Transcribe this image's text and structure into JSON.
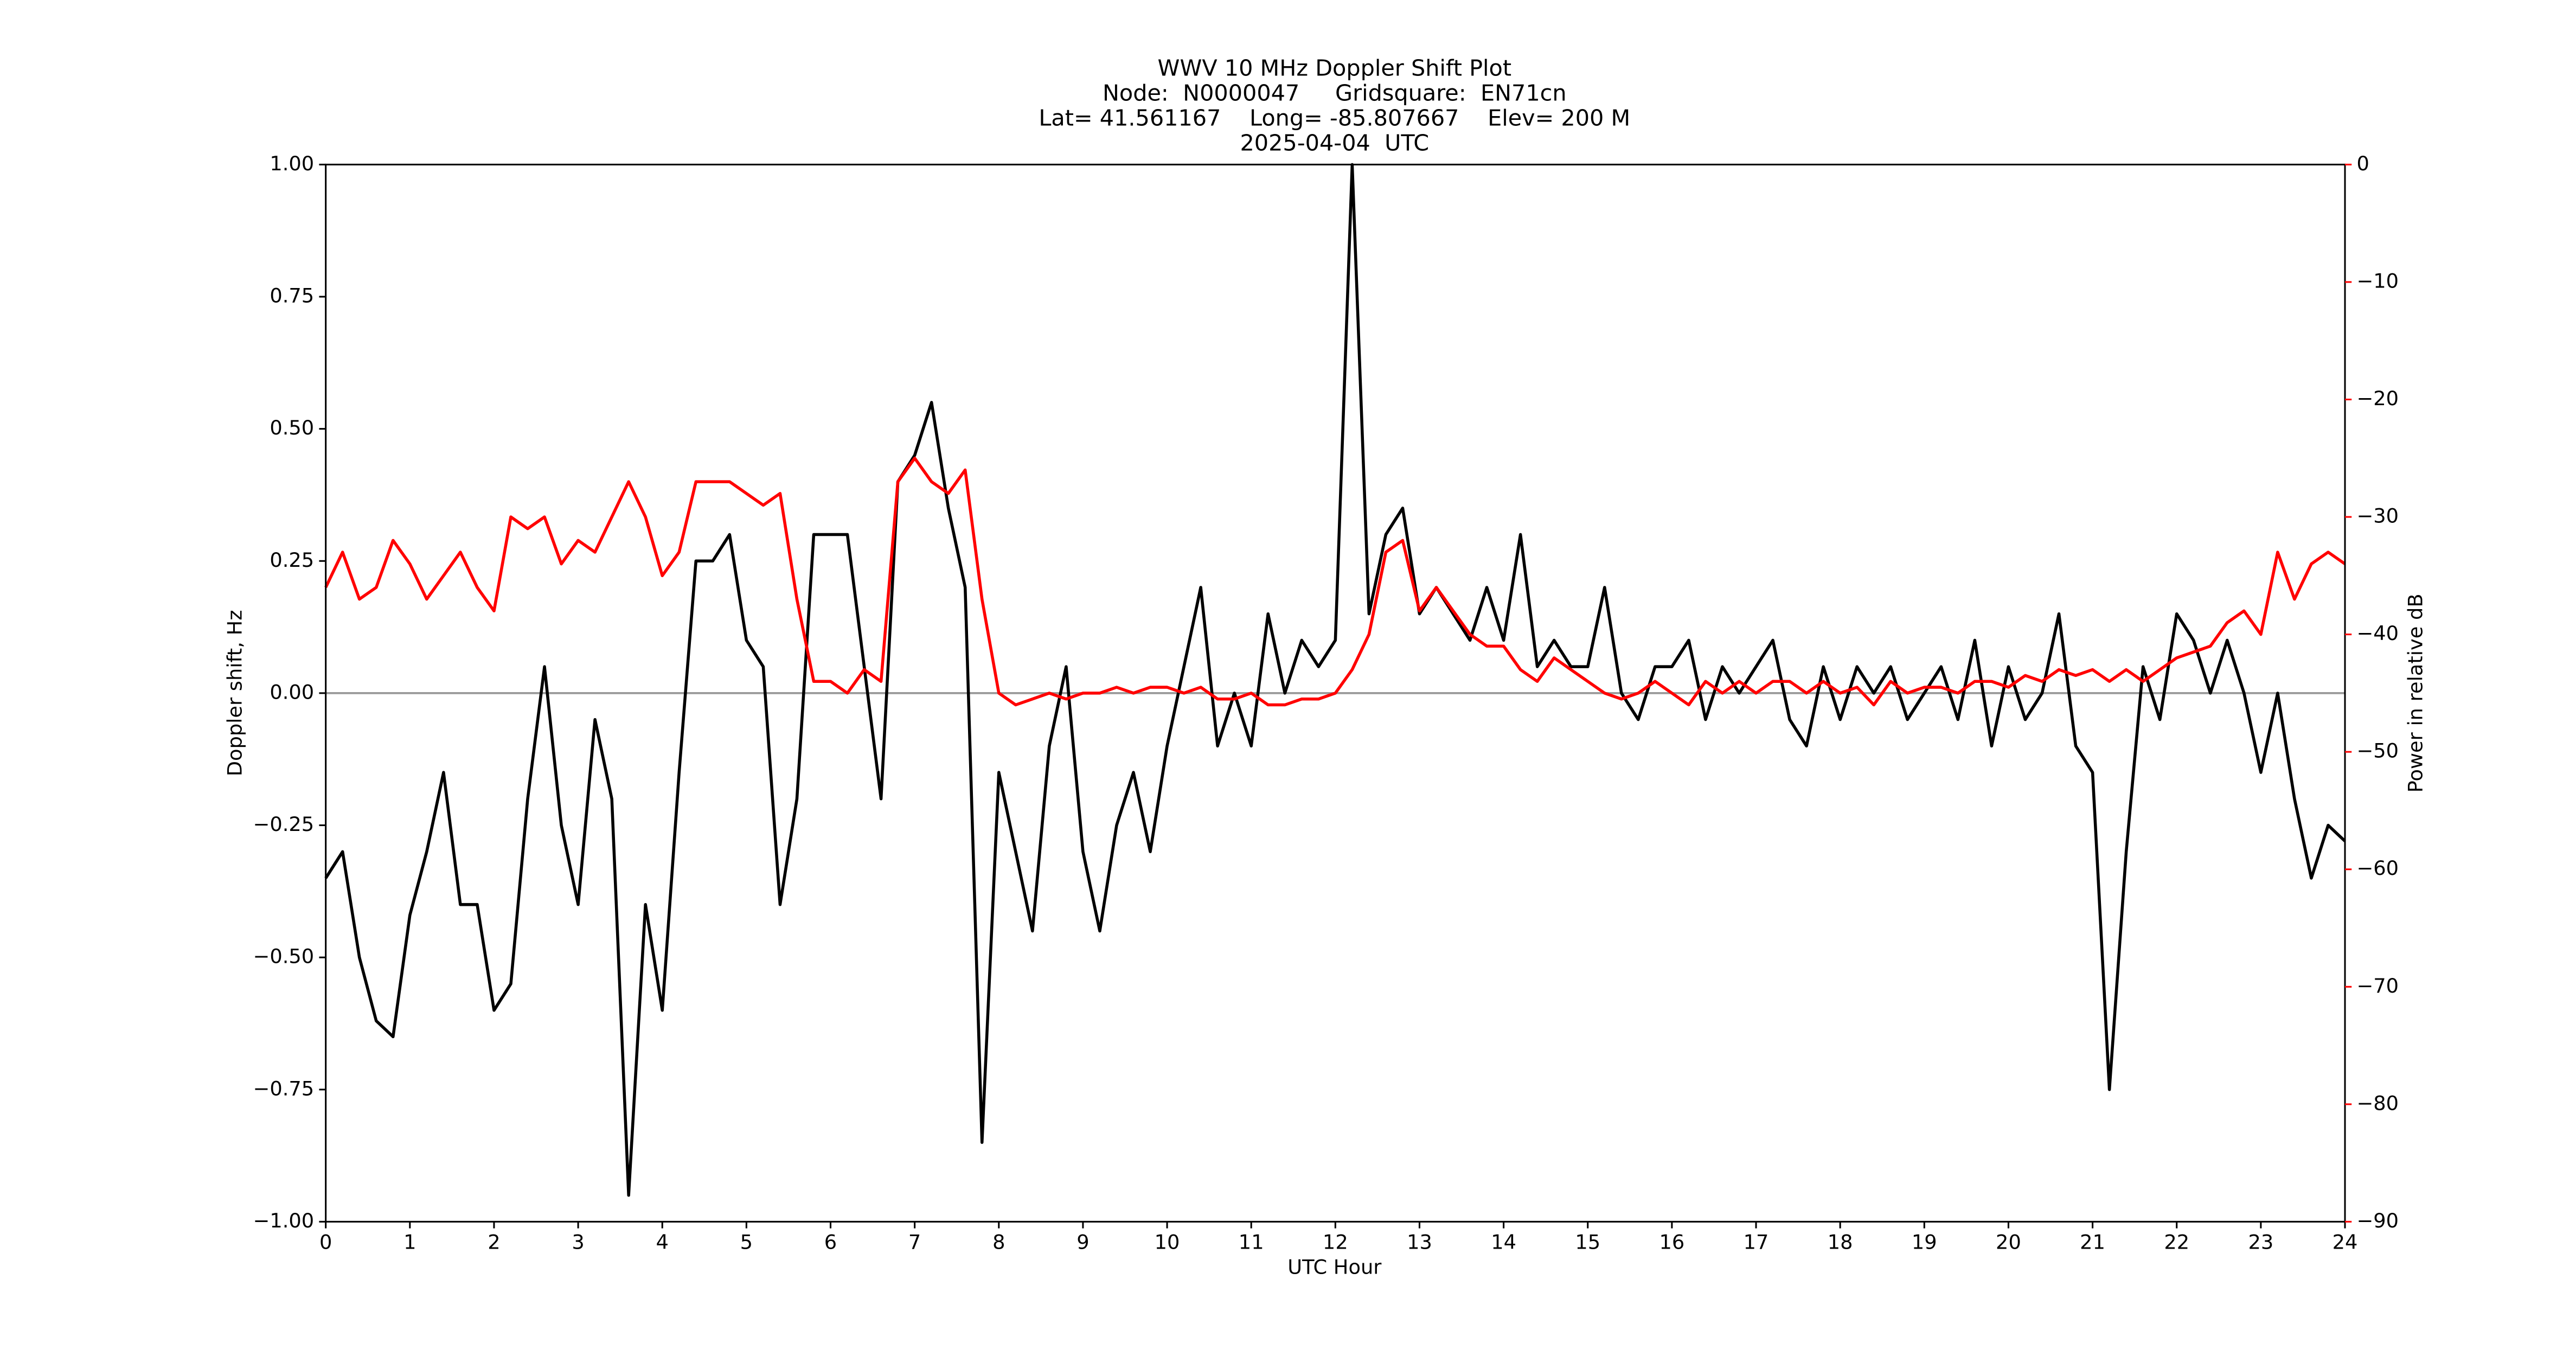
{
  "chart_data": {
    "type": "line",
    "title": "WWV 10 MHz Doppler Shift Plot",
    "subtitle": [
      "Node:  N0000047     Gridsquare:  EN71cn",
      "Lat= 41.561167    Long= -85.807667    Elev= 200 M",
      "2025-04-04  UTC"
    ],
    "x_label": "UTC Hour",
    "y_label": "Doppler shift, Hz",
    "y2_label": "Power in relative dB",
    "y2_color": "#ff0000",
    "x": [
      0,
      0.2,
      0.4,
      0.6,
      0.8,
      1,
      1.2,
      1.4,
      1.6,
      1.8,
      2,
      2.2,
      2.4,
      2.6,
      2.8,
      3,
      3.2,
      3.4,
      3.6,
      3.8,
      4,
      4.2,
      4.4,
      4.6,
      4.8,
      5,
      5.2,
      5.4,
      5.6,
      5.8,
      6,
      6.2,
      6.4,
      6.6,
      6.8,
      7,
      7.2,
      7.4,
      7.6,
      7.8,
      8,
      8.2,
      8.4,
      8.6,
      8.8,
      9,
      9.2,
      9.4,
      9.6,
      9.8,
      10,
      10.2,
      10.4,
      10.6,
      10.8,
      11,
      11.2,
      11.4,
      11.6,
      11.8,
      12,
      12.2,
      12.4,
      12.6,
      12.8,
      13,
      13.2,
      13.4,
      13.6,
      13.8,
      14,
      14.2,
      14.4,
      14.6,
      14.8,
      15,
      15.2,
      15.4,
      15.6,
      15.8,
      16,
      16.2,
      16.4,
      16.6,
      16.8,
      17,
      17.2,
      17.4,
      17.6,
      17.8,
      18,
      18.2,
      18.4,
      18.6,
      18.8,
      19,
      19.2,
      19.4,
      19.6,
      19.8,
      20,
      20.2,
      20.4,
      20.6,
      20.8,
      21,
      21.2,
      21.4,
      21.6,
      21.8,
      22,
      22.2,
      22.4,
      22.6,
      22.8,
      23,
      23.2,
      23.4,
      23.6,
      23.8,
      24
    ],
    "series": [
      {
        "color": "#000000",
        "values": [
          -0.35,
          -0.3,
          -0.5,
          -0.62,
          -0.65,
          -0.42,
          -0.3,
          -0.15,
          -0.4,
          -0.4,
          -0.6,
          -0.55,
          -0.2,
          0.05,
          -0.25,
          -0.4,
          -0.05,
          -0.2,
          -0.95,
          -0.4,
          -0.6,
          -0.15,
          0.25,
          0.25,
          0.3,
          0.1,
          0.05,
          -0.4,
          -0.2,
          0.3,
          0.3,
          0.3,
          0.05,
          -0.2,
          0.4,
          0.45,
          0.55,
          0.35,
          0.2,
          -0.85,
          -0.15,
          -0.3,
          -0.45,
          -0.1,
          0.05,
          -0.3,
          -0.45,
          -0.25,
          -0.15,
          -0.3,
          -0.1,
          0.05,
          0.2,
          -0.1,
          0.0,
          -0.1,
          0.15,
          0.0,
          0.1,
          0.05,
          0.1,
          1.0,
          0.15,
          0.3,
          0.35,
          0.15,
          0.2,
          0.15,
          0.1,
          0.2,
          0.1,
          0.3,
          0.05,
          0.1,
          0.05,
          0.05,
          0.2,
          0.0,
          -0.05,
          0.05,
          0.05,
          0.1,
          -0.05,
          0.05,
          0.0,
          0.05,
          0.1,
          -0.05,
          -0.1,
          0.05,
          -0.05,
          0.05,
          0.0,
          0.05,
          -0.05,
          0.0,
          0.05,
          -0.05,
          0.1,
          -0.1,
          0.05,
          -0.05,
          0.0,
          0.15,
          -0.1,
          -0.15,
          -0.75,
          -0.3,
          0.05,
          -0.05,
          0.15,
          0.1,
          0.0,
          0.1,
          0.0,
          -0.15,
          0.0,
          -0.2,
          -0.35,
          -0.25,
          -0.28
        ]
      },
      {
        "color": "#ff0000",
        "axis": "y2",
        "values": [
          -36,
          -33,
          -37,
          -36,
          -32,
          -34,
          -37,
          -35,
          -33,
          -36,
          -38,
          -30,
          -31,
          -30,
          -34,
          -32,
          -33,
          -30,
          -27,
          -30,
          -35,
          -33,
          -27,
          -27,
          -27,
          -28,
          -29,
          -28,
          -37,
          -44,
          -44,
          -45,
          -43,
          -44,
          -27,
          -25,
          -27,
          -28,
          -26,
          -37,
          -45,
          -46,
          -45.5,
          -45,
          -45.5,
          -45,
          -45,
          -44.5,
          -45,
          -44.5,
          -44.5,
          -45,
          -44.5,
          -45.5,
          -45.5,
          -45,
          -46,
          -46,
          -45.5,
          -45.5,
          -45,
          -43,
          -40,
          -33,
          -32,
          -38,
          -36,
          -38,
          -40,
          -41,
          -41,
          -43,
          -44,
          -42,
          -43,
          -44,
          -45,
          -45.5,
          -45,
          -44,
          -45,
          -46,
          -44,
          -45,
          -44,
          -45,
          -44,
          -44,
          -45,
          -44,
          -45,
          -44.5,
          -46,
          -44,
          -45,
          -44.5,
          -44.5,
          -45,
          -44,
          -44,
          -44.5,
          -43.5,
          -44,
          -43,
          -43.5,
          -43,
          -44,
          -43,
          -44,
          -43,
          -42,
          -41.5,
          -41,
          -39,
          -38,
          -40,
          -33,
          -37,
          -34,
          -33,
          -34
        ]
      }
    ],
    "xlim": [
      0,
      24
    ],
    "xticks": [
      0,
      1,
      2,
      3,
      4,
      5,
      6,
      7,
      8,
      9,
      10,
      11,
      12,
      13,
      14,
      15,
      16,
      17,
      18,
      19,
      20,
      21,
      22,
      23,
      24
    ],
    "ylim": [
      -1,
      1
    ],
    "yticks": [
      {
        "value": -1,
        "label": "−1.00"
      },
      {
        "value": -0.75,
        "label": "−0.75"
      },
      {
        "value": -0.5,
        "label": "−0.50"
      },
      {
        "value": -0.25,
        "label": "−0.25"
      },
      {
        "value": 0,
        "label": "0.00"
      },
      0.25,
      {
        "value": 0.5,
        "label": "0.50"
      },
      0.75,
      {
        "value": 1,
        "label": "1.00"
      }
    ],
    "y2lim": [
      -90,
      0
    ],
    "y2ticks": [
      {
        "value": -90,
        "label": "−90"
      },
      {
        "value": -80,
        "label": "−80"
      },
      {
        "value": -70,
        "label": "−70"
      },
      {
        "value": -60,
        "label": "−60"
      },
      {
        "value": -50,
        "label": "−50"
      },
      {
        "value": -40,
        "label": "−40"
      },
      {
        "value": -30,
        "label": "−30"
      },
      {
        "value": -20,
        "label": "−20"
      },
      {
        "value": -10,
        "label": "−10"
      },
      0
    ]
  }
}
